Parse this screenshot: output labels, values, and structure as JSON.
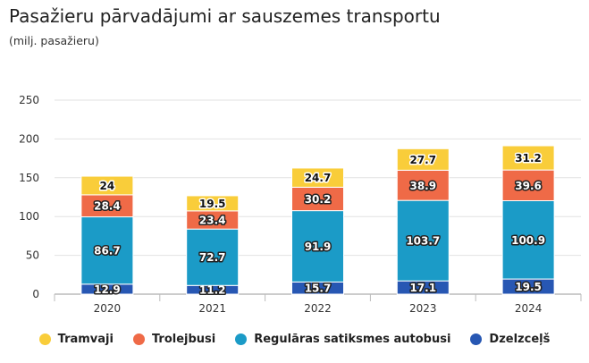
{
  "chart_data": {
    "type": "bar",
    "stacked": true,
    "title": "Pasažieru pārvadājumi ar sauszemes transportu",
    "subtitle": "(milj. pasažieru)",
    "categories": [
      "2020",
      "2021",
      "2022",
      "2023",
      "2024"
    ],
    "ylim": [
      0,
      250
    ],
    "yticks": [
      0,
      50,
      100,
      150,
      200,
      250
    ],
    "grid": true,
    "legend_position": "bottom",
    "series": [
      {
        "name": "Dzelzceļš",
        "color": "#2757b3",
        "values": [
          12.9,
          11.2,
          15.7,
          17.1,
          19.5
        ]
      },
      {
        "name": "Regulāras satiksmes autobusi",
        "color": "#1b9bc7",
        "values": [
          86.7,
          72.7,
          91.9,
          103.7,
          100.9
        ]
      },
      {
        "name": "Trolejbusi",
        "color": "#ef6a47",
        "values": [
          28.4,
          23.4,
          30.2,
          38.9,
          39.6
        ]
      },
      {
        "name": "Tramvaji",
        "color": "#f9cd3a",
        "values": [
          24,
          19.5,
          24.7,
          27.7,
          31.2
        ]
      }
    ],
    "legend_order": [
      "Tramvaji",
      "Trolejbusi",
      "Regulāras satiksmes autobusi",
      "Dzelzceļš"
    ]
  }
}
